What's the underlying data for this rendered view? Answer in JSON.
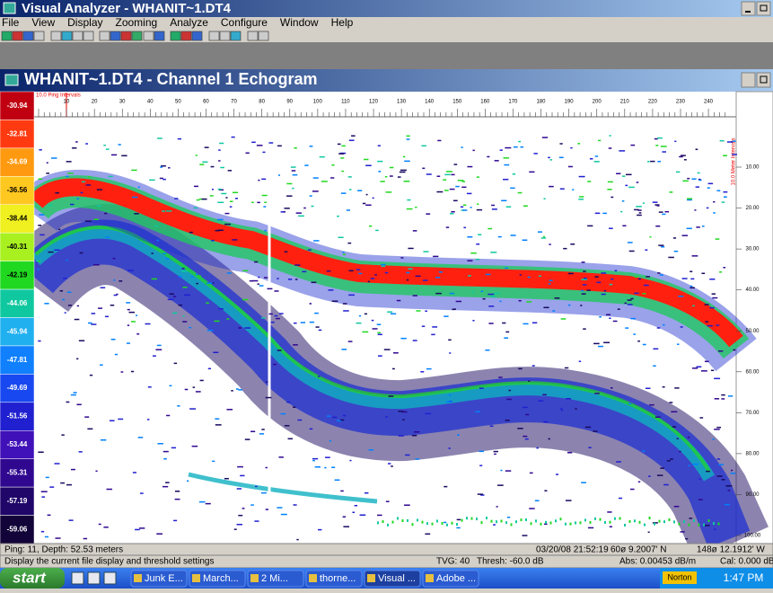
{
  "window": {
    "title": "Visual Analyzer - WHANIT~1.DT4"
  },
  "menu": [
    "File",
    "View",
    "Display",
    "Zooming",
    "Analyze",
    "Configure",
    "Window",
    "Help"
  ],
  "echogram": {
    "title": "WHANIT~1.DT4 - Channel 1 Echogram",
    "ping_axis_label": "10.0 Ping Intervals",
    "ping_ticks": [
      "10",
      "20",
      "30",
      "40",
      "50",
      "60",
      "70",
      "80",
      "90",
      "100",
      "110",
      "120",
      "130",
      "140",
      "150",
      "160",
      "170",
      "180",
      "190",
      "200",
      "210",
      "220",
      "230",
      "240"
    ],
    "depth_axis_label": "10.0 Meter Intervals",
    "depth_ticks": [
      "10.00",
      "20.00",
      "30.00",
      "40.00",
      "50.00",
      "60.00",
      "70.00",
      "80.00",
      "90.00",
      "100.00"
    ],
    "color_scale": [
      {
        "label": "-30.94",
        "color": "#c00010"
      },
      {
        "label": "-32.81",
        "color": "#ff3a10"
      },
      {
        "label": "-34.69",
        "color": "#ff9a10"
      },
      {
        "label": "-36.56",
        "color": "#ffc820"
      },
      {
        "label": "-38.44",
        "color": "#f0f020"
      },
      {
        "label": "-40.31",
        "color": "#a8f020"
      },
      {
        "label": "-42.19",
        "color": "#20d820"
      },
      {
        "label": "-44.06",
        "color": "#10c8a0"
      },
      {
        "label": "-45.94",
        "color": "#20b0f0"
      },
      {
        "label": "-47.81",
        "color": "#1080ff"
      },
      {
        "label": "-49.69",
        "color": "#1848f0"
      },
      {
        "label": "-51.56",
        "color": "#2020d0"
      },
      {
        "label": "-53.44",
        "color": "#4010b8"
      },
      {
        "label": "-55.31",
        "color": "#300890"
      },
      {
        "label": "-57.19",
        "color": "#200668"
      },
      {
        "label": "-59.06",
        "color": "#120438"
      }
    ]
  },
  "status": {
    "position": "Ping: 11, Depth: 52.53 meters",
    "timestamp": "03/20/08 21:52:19",
    "latitude": "60ø 9.2007' N",
    "longitude": "148ø 12.1912' W"
  },
  "status2": {
    "hint": "Display the current file display and threshold settings",
    "tvg": "TVG: 40",
    "thresh": "Thresh: -60.0 dB",
    "abs": "Abs: 0.00453 dB/m",
    "cal": "Cal: 0.000 dB"
  },
  "taskbar": {
    "start": "start",
    "items": [
      "Junk E...",
      "March...",
      "2 Mi...",
      "thorne...",
      "Visual ...",
      "Adobe ..."
    ],
    "tray_label": "Norton",
    "clock": "1:47 PM"
  }
}
